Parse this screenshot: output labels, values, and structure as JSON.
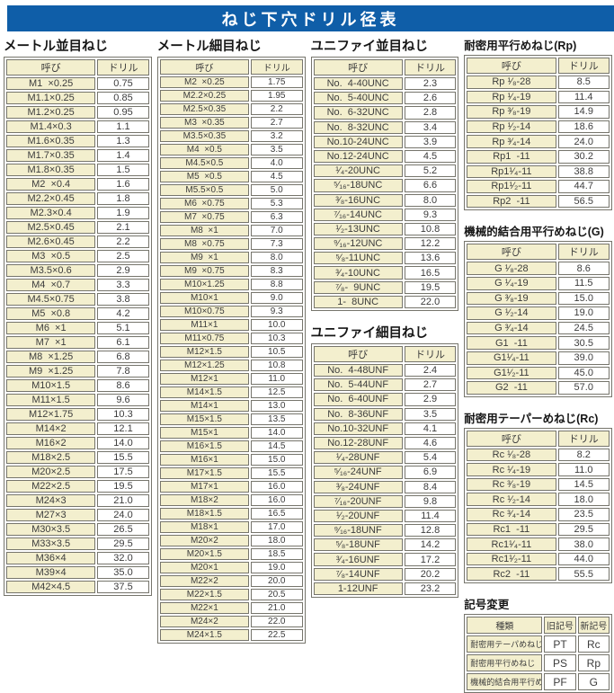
{
  "title": "ねじ下穴ドリル径表",
  "headers": {
    "name": "呼び",
    "drill": "ドリル"
  },
  "colors": {
    "header_bar_blue": "#0f5ea8",
    "header_text": "#ffffff",
    "cell_cream": "#f3efce",
    "cell_white": "#ffffff",
    "border_gray": "#76756c",
    "text_gray": "#3c3c3c"
  },
  "sections": {
    "metric_coarse": {
      "title": "メートル並目ねじ",
      "rows": [
        [
          "M1  ×0.25",
          "0.75"
        ],
        [
          "M1.1×0.25",
          "0.85"
        ],
        [
          "M1.2×0.25",
          "0.95"
        ],
        [
          "M1.4×0.3",
          "1.1"
        ],
        [
          "M1.6×0.35",
          "1.3"
        ],
        [
          "M1.7×0.35",
          "1.4"
        ],
        [
          "M1.8×0.35",
          "1.5"
        ],
        [
          "M2  ×0.4",
          "1.6"
        ],
        [
          "M2.2×0.45",
          "1.8"
        ],
        [
          "M2.3×0.4",
          "1.9"
        ],
        [
          "M2.5×0.45",
          "2.1"
        ],
        [
          "M2.6×0.45",
          "2.2"
        ],
        [
          "M3  ×0.5",
          "2.5"
        ],
        [
          "M3.5×0.6",
          "2.9"
        ],
        [
          "M4  ×0.7",
          "3.3"
        ],
        [
          "M4.5×0.75",
          "3.8"
        ],
        [
          "M5  ×0.8",
          "4.2"
        ],
        [
          "M6  ×1",
          "5.1"
        ],
        [
          "M7  ×1",
          "6.1"
        ],
        [
          "M8  ×1.25",
          "6.8"
        ],
        [
          "M9  ×1.25",
          "7.8"
        ],
        [
          "M10×1.5",
          "8.6"
        ],
        [
          "M11×1.5",
          "9.6"
        ],
        [
          "M12×1.75",
          "10.3"
        ],
        [
          "M14×2",
          "12.1"
        ],
        [
          "M16×2",
          "14.0"
        ],
        [
          "M18×2.5",
          "15.5"
        ],
        [
          "M20×2.5",
          "17.5"
        ],
        [
          "M22×2.5",
          "19.5"
        ],
        [
          "M24×3",
          "21.0"
        ],
        [
          "M27×3",
          "24.0"
        ],
        [
          "M30×3.5",
          "26.5"
        ],
        [
          "M33×3.5",
          "29.5"
        ],
        [
          "M36×4",
          "32.0"
        ],
        [
          "M39×4",
          "35.0"
        ],
        [
          "M42×4.5",
          "37.5"
        ]
      ]
    },
    "metric_fine": {
      "title": "メートル細目ねじ",
      "rows": [
        [
          "M2  ×0.25",
          "1.75"
        ],
        [
          "M2.2×0.25",
          "1.95"
        ],
        [
          "M2.5×0.35",
          "2.2"
        ],
        [
          "M3  ×0.35",
          "2.7"
        ],
        [
          "M3.5×0.35",
          "3.2"
        ],
        [
          "M4  ×0.5",
          "3.5"
        ],
        [
          "M4.5×0.5",
          "4.0"
        ],
        [
          "M5  ×0.5",
          "4.5"
        ],
        [
          "M5.5×0.5",
          "5.0"
        ],
        [
          "M6  ×0.75",
          "5.3"
        ],
        [
          "M7  ×0.75",
          "6.3"
        ],
        [
          "M8  ×1",
          "7.0"
        ],
        [
          "M8  ×0.75",
          "7.3"
        ],
        [
          "M9  ×1",
          "8.0"
        ],
        [
          "M9  ×0.75",
          "8.3"
        ],
        [
          "M10×1.25",
          "8.8"
        ],
        [
          "M10×1",
          "9.0"
        ],
        [
          "M10×0.75",
          "9.3"
        ],
        [
          "M11×1",
          "10.0"
        ],
        [
          "M11×0.75",
          "10.3"
        ],
        [
          "M12×1.5",
          "10.5"
        ],
        [
          "M12×1.25",
          "10.8"
        ],
        [
          "M12×1",
          "11.0"
        ],
        [
          "M14×1.5",
          "12.5"
        ],
        [
          "M14×1",
          "13.0"
        ],
        [
          "M15×1.5",
          "13.5"
        ],
        [
          "M15×1",
          "14.0"
        ],
        [
          "M16×1.5",
          "14.5"
        ],
        [
          "M16×1",
          "15.0"
        ],
        [
          "M17×1.5",
          "15.5"
        ],
        [
          "M17×1",
          "16.0"
        ],
        [
          "M18×2",
          "16.0"
        ],
        [
          "M18×1.5",
          "16.5"
        ],
        [
          "M18×1",
          "17.0"
        ],
        [
          "M20×2",
          "18.0"
        ],
        [
          "M20×1.5",
          "18.5"
        ],
        [
          "M20×1",
          "19.0"
        ],
        [
          "M22×2",
          "20.0"
        ],
        [
          "M22×1.5",
          "20.5"
        ],
        [
          "M22×1",
          "21.0"
        ],
        [
          "M24×2",
          "22.0"
        ],
        [
          "M24×1.5",
          "22.5"
        ]
      ]
    },
    "unified_coarse": {
      "title": "ユニファイ並目ねじ",
      "rows": [
        [
          "No.  4-40UNC",
          "2.3"
        ],
        [
          "No.  5-40UNC",
          "2.6"
        ],
        [
          "No.  6-32UNC",
          "2.8"
        ],
        [
          "No.  8-32UNC",
          "3.4"
        ],
        [
          "No.10-24UNC",
          "3.9"
        ],
        [
          "No.12-24UNC",
          "4.5"
        ],
        [
          "¹⁄₄-20UNC",
          "5.2"
        ],
        [
          "⁵⁄₁₆-18UNC",
          "6.6"
        ],
        [
          "³⁄₈-16UNC",
          "8.0"
        ],
        [
          "⁷⁄₁₆-14UNC",
          "9.3"
        ],
        [
          "¹⁄₂-13UNC",
          "10.8"
        ],
        [
          "⁹⁄₁₆-12UNC",
          "12.2"
        ],
        [
          "⁵⁄₈-11UNC",
          "13.6"
        ],
        [
          "³⁄₄-10UNC",
          "16.5"
        ],
        [
          "⁷⁄₈-  9UNC",
          "19.5"
        ],
        [
          "1-  8UNC",
          "22.0"
        ]
      ]
    },
    "unified_fine": {
      "title": "ユニファイ細目ねじ",
      "rows": [
        [
          "No.  4-48UNF",
          "2.4"
        ],
        [
          "No.  5-44UNF",
          "2.7"
        ],
        [
          "No.  6-40UNF",
          "2.9"
        ],
        [
          "No.  8-36UNF",
          "3.5"
        ],
        [
          "No.10-32UNF",
          "4.1"
        ],
        [
          "No.12-28UNF",
          "4.6"
        ],
        [
          "¹⁄₄-28UNF",
          "5.4"
        ],
        [
          "⁵⁄₁₆-24UNF",
          "6.9"
        ],
        [
          "³⁄₈-24UNF",
          "8.4"
        ],
        [
          "⁷⁄₁₆-20UNF",
          "9.8"
        ],
        [
          "¹⁄₂-20UNF",
          "11.4"
        ],
        [
          "⁹⁄₁₆-18UNF",
          "12.8"
        ],
        [
          "⁵⁄₈-18UNF",
          "14.2"
        ],
        [
          "³⁄₄-16UNF",
          "17.2"
        ],
        [
          "⁷⁄₈-14UNF",
          "20.2"
        ],
        [
          "1-12UNF",
          "23.2"
        ]
      ]
    },
    "rp": {
      "title": "耐密用平行めねじ(Rp)",
      "rows": [
        [
          "Rp ¹⁄₈-28",
          "8.5"
        ],
        [
          "Rp ¹⁄₄-19",
          "11.4"
        ],
        [
          "Rp ³⁄₈-19",
          "14.9"
        ],
        [
          "Rp ¹⁄₂-14",
          "18.6"
        ],
        [
          "Rp ³⁄₄-14",
          "24.0"
        ],
        [
          "Rp1  -11",
          "30.2"
        ],
        [
          "Rp1¹⁄₄-11",
          "38.8"
        ],
        [
          "Rp1¹⁄₂-11",
          "44.7"
        ],
        [
          "Rp2  -11",
          "56.5"
        ]
      ]
    },
    "g": {
      "title": "機械的結合用平行めねじ(G)",
      "rows": [
        [
          "G ¹⁄₈-28",
          "8.6"
        ],
        [
          "G ¹⁄₄-19",
          "11.5"
        ],
        [
          "G ³⁄₈-19",
          "15.0"
        ],
        [
          "G ¹⁄₂-14",
          "19.0"
        ],
        [
          "G ³⁄₄-14",
          "24.5"
        ],
        [
          "G1  -11",
          "30.5"
        ],
        [
          "G1¹⁄₄-11",
          "39.0"
        ],
        [
          "G1¹⁄₂-11",
          "45.0"
        ],
        [
          "G2  -11",
          "57.0"
        ]
      ]
    },
    "rc": {
      "title": "耐密用テーパーめねじ(Rc)",
      "rows": [
        [
          "Rc ¹⁄₈-28",
          "8.2"
        ],
        [
          "Rc ¹⁄₄-19",
          "11.0"
        ],
        [
          "Rc ³⁄₈-19",
          "14.5"
        ],
        [
          "Rc ¹⁄₂-14",
          "18.0"
        ],
        [
          "Rc ³⁄₄-14",
          "23.5"
        ],
        [
          "Rc1  -11",
          "29.5"
        ],
        [
          "Rc1¹⁄₄-11",
          "38.0"
        ],
        [
          "Rc1¹⁄₂-11",
          "44.0"
        ],
        [
          "Rc2  -11",
          "55.5"
        ]
      ]
    }
  },
  "symbol_change": {
    "title": "記号変更",
    "headers": [
      "種類",
      "旧記号",
      "新記号"
    ],
    "rows": [
      [
        "耐密用テーパめねじ",
        "PT",
        "Rc"
      ],
      [
        "耐密用平行めねじ",
        "PS",
        "Rp"
      ],
      [
        "機械的結合用平行めねじ",
        "PF",
        "G"
      ]
    ]
  }
}
